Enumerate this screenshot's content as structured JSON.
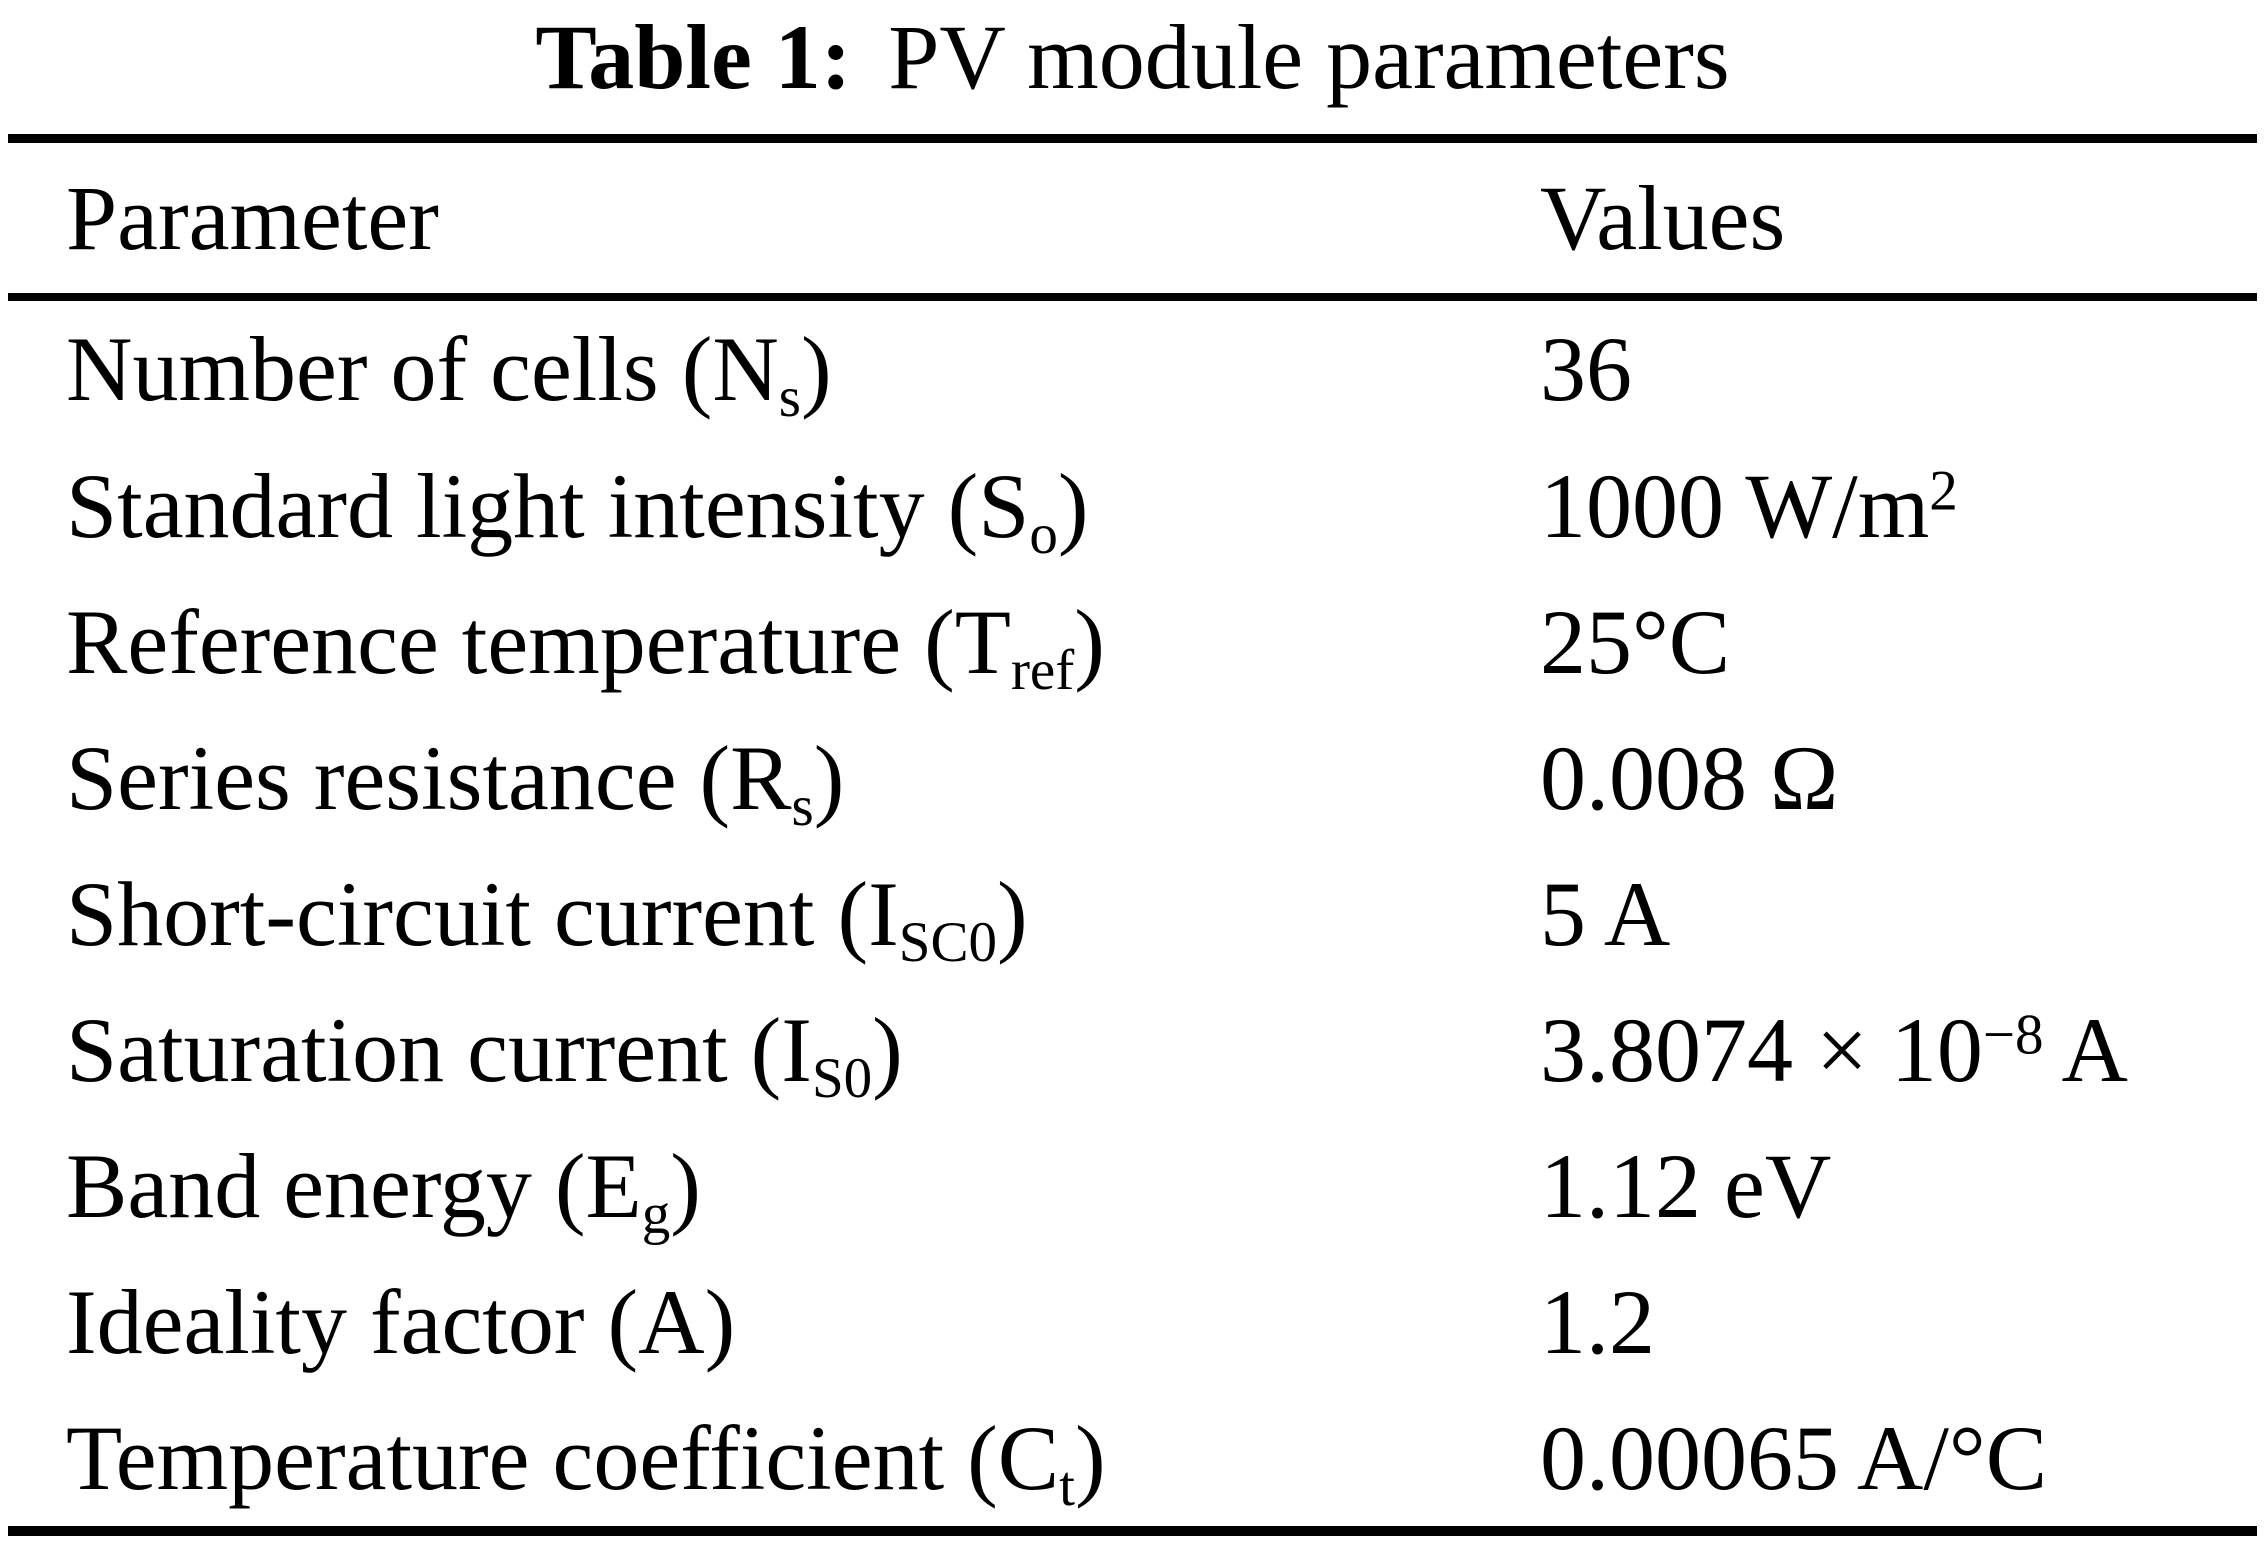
{
  "title": {
    "label": "Table 1:",
    "text": "PV module parameters"
  },
  "table": {
    "columns": [
      "Parameter",
      "Values"
    ],
    "rows": [
      {
        "param_pre": "Number of cells (N",
        "param_sub": "s",
        "param_post": ")",
        "value_pre": "36",
        "value_sup": "",
        "value_post": ""
      },
      {
        "param_pre": "Standard light intensity (S",
        "param_sub": "o",
        "param_post": ")",
        "value_pre": "1000 W/m",
        "value_sup": "2",
        "value_post": ""
      },
      {
        "param_pre": "Reference temperature (T",
        "param_sub": "ref",
        "param_post": ")",
        "value_pre": "25°C",
        "value_sup": "",
        "value_post": ""
      },
      {
        "param_pre": "Series resistance (R",
        "param_sub": "s",
        "param_post": ")",
        "value_pre": "0.008 Ω",
        "value_sup": "",
        "value_post": ""
      },
      {
        "param_pre": "Short-circuit current (I",
        "param_sub": "SC0",
        "param_post": ")",
        "value_pre": "5 A",
        "value_sup": "",
        "value_post": ""
      },
      {
        "param_pre": "Saturation current (I",
        "param_sub": "S0",
        "param_post": ")",
        "value_pre": "3.8074 × 10",
        "value_sup": "−8",
        "value_post": " A"
      },
      {
        "param_pre": "Band energy (E",
        "param_sub": "g",
        "param_post": ")",
        "value_pre": "1.12 eV",
        "value_sup": "",
        "value_post": ""
      },
      {
        "param_pre": "Ideality factor (A)",
        "param_sub": "",
        "param_post": "",
        "value_pre": "1.2",
        "value_sup": "",
        "value_post": ""
      },
      {
        "param_pre": "Temperature coefficient (C",
        "param_sub": "t",
        "param_post": ")",
        "value_pre": "0.00065 A/°C",
        "value_sup": "",
        "value_post": ""
      }
    ]
  }
}
